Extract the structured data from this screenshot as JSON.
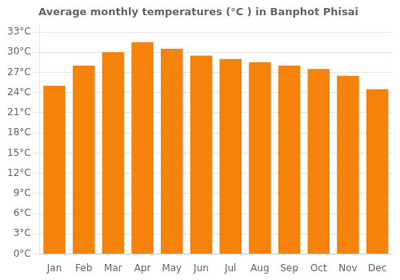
{
  "chart_data": {
    "type": "bar",
    "title": "Average monthly temperatures (°C ) in Banphot Phisai",
    "categories": [
      "Jan",
      "Feb",
      "Mar",
      "Apr",
      "May",
      "Jun",
      "Jul",
      "Aug",
      "Sep",
      "Oct",
      "Nov",
      "Dec"
    ],
    "values": [
      25.0,
      28.0,
      30.0,
      31.5,
      30.5,
      29.5,
      29.0,
      28.5,
      28.0,
      27.5,
      26.5,
      24.5
    ],
    "color": "#F5820A",
    "ylim": [
      0,
      34
    ],
    "yticks": [
      {
        "value": 0,
        "label": "0°C"
      },
      {
        "value": 3,
        "label": "3°C"
      },
      {
        "value": 6,
        "label": "6°C"
      },
      {
        "value": 9,
        "label": "9°C"
      },
      {
        "value": 12,
        "label": "12°C"
      },
      {
        "value": 15,
        "label": "15°C"
      },
      {
        "value": 18,
        "label": "18°C"
      },
      {
        "value": 21,
        "label": "21°C"
      },
      {
        "value": 24,
        "label": "24°C"
      },
      {
        "value": 27,
        "label": "27°C"
      },
      {
        "value": 30,
        "label": "30°C"
      },
      {
        "value": 33,
        "label": "33°C"
      }
    ],
    "grid": true
  }
}
